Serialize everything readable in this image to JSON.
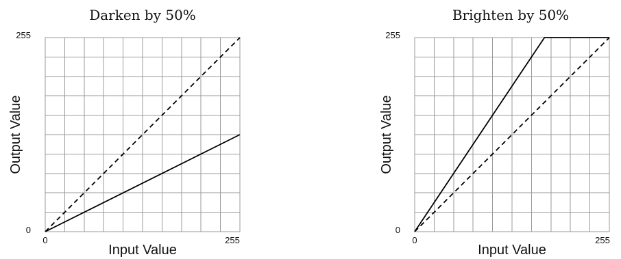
{
  "colors": {
    "grid": "#9a9a9a",
    "curve": "#000000",
    "reference": "#000000"
  },
  "chart_data": [
    {
      "type": "line",
      "title": "Darken by 50%",
      "xlabel": "Input Value",
      "ylabel": "Output Value",
      "xlim": [
        0,
        255
      ],
      "ylim": [
        0,
        255
      ],
      "x_ticks": [
        "0",
        "255"
      ],
      "y_ticks": [
        "0",
        "255"
      ],
      "grid": true,
      "grid_divisions": 10,
      "series": [
        {
          "style": "solid",
          "x": [
            0,
            255
          ],
          "y": [
            0,
            127.5
          ]
        },
        {
          "style": "dashed",
          "x": [
            0,
            255
          ],
          "y": [
            0,
            255
          ]
        }
      ]
    },
    {
      "type": "line",
      "title": "Brighten by 50%",
      "xlabel": "Input Value",
      "ylabel": "Output Value",
      "xlim": [
        0,
        255
      ],
      "ylim": [
        0,
        255
      ],
      "x_ticks": [
        "0",
        "255"
      ],
      "y_ticks": [
        "0",
        "255"
      ],
      "grid": true,
      "grid_divisions": 10,
      "series": [
        {
          "style": "solid",
          "x": [
            0,
            170,
            255
          ],
          "y": [
            0,
            255,
            255
          ]
        },
        {
          "style": "dashed",
          "x": [
            0,
            255
          ],
          "y": [
            0,
            255
          ]
        }
      ]
    }
  ]
}
